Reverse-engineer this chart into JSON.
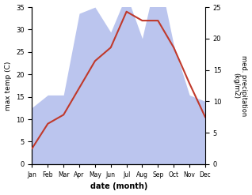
{
  "months": [
    "Jan",
    "Feb",
    "Mar",
    "Apr",
    "May",
    "Jun",
    "Jul",
    "Aug",
    "Sep",
    "Oct",
    "Nov",
    "Dec"
  ],
  "max_temp": [
    3.5,
    9.0,
    11.0,
    17.0,
    23.0,
    26.0,
    34.0,
    32.0,
    32.0,
    26.0,
    18.0,
    10.5
  ],
  "precipitation": [
    9.0,
    11.0,
    11.0,
    24.0,
    25.0,
    21.0,
    27.0,
    20.0,
    31.0,
    19.0,
    11.0,
    10.0
  ],
  "temp_color": "#c0392b",
  "precip_color_fill": "#bbc5ee",
  "ylabel_left": "max temp (C)",
  "ylabel_right": "med. precipitation\n(kg/m2)",
  "xlabel": "date (month)",
  "ylim_left": [
    0,
    35
  ],
  "ylim_right": [
    0,
    25
  ],
  "yticks_left": [
    0,
    5,
    10,
    15,
    20,
    25,
    30,
    35
  ],
  "yticks_right": [
    0,
    5,
    10,
    15,
    20,
    25
  ],
  "background_color": "#ffffff"
}
